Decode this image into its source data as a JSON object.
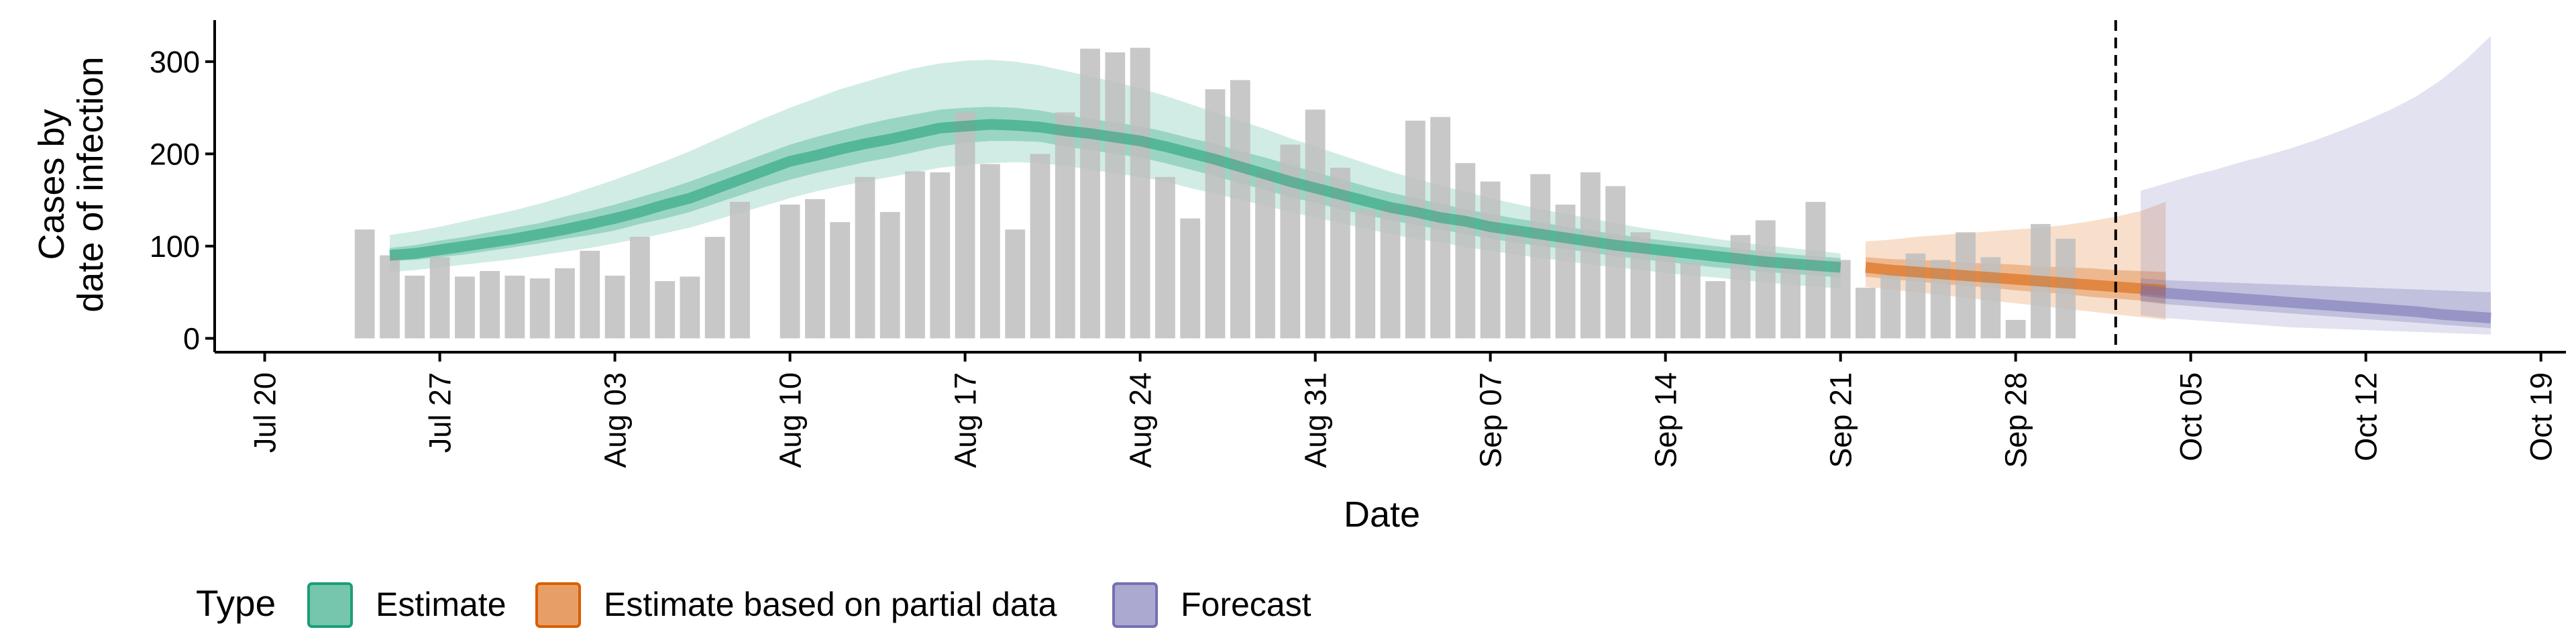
{
  "chart_data": {
    "type": "bar",
    "title": "",
    "xlabel": "Date",
    "ylabel_lines": [
      "Cases by",
      "date of infection"
    ],
    "xlim": [
      "2020-07-18",
      "2020-10-20"
    ],
    "ylim": [
      -15,
      345
    ],
    "y_ticks": [
      0,
      100,
      200,
      300
    ],
    "x_ticks": [
      {
        "date": "2020-07-20",
        "label": "Jul 20"
      },
      {
        "date": "2020-07-27",
        "label": "Jul 27"
      },
      {
        "date": "2020-08-03",
        "label": "Aug 03"
      },
      {
        "date": "2020-08-10",
        "label": "Aug 10"
      },
      {
        "date": "2020-08-17",
        "label": "Aug 17"
      },
      {
        "date": "2020-08-24",
        "label": "Aug 24"
      },
      {
        "date": "2020-08-31",
        "label": "Aug 31"
      },
      {
        "date": "2020-09-07",
        "label": "Sep 07"
      },
      {
        "date": "2020-09-14",
        "label": "Sep 14"
      },
      {
        "date": "2020-09-21",
        "label": "Sep 21"
      },
      {
        "date": "2020-09-28",
        "label": "Sep 28"
      },
      {
        "date": "2020-10-05",
        "label": "Oct 05"
      },
      {
        "date": "2020-10-12",
        "label": "Oct 12"
      },
      {
        "date": "2020-10-19",
        "label": "Oct 19"
      }
    ],
    "bars": {
      "start_date": "2020-07-24",
      "color": "#bebebe",
      "values": [
        118,
        90,
        68,
        88,
        67,
        73,
        68,
        65,
        76,
        95,
        68,
        110,
        62,
        67,
        110,
        148,
        null,
        145,
        151,
        126,
        175,
        137,
        181,
        180,
        245,
        189,
        118,
        200,
        245,
        314,
        310,
        315,
        175,
        130,
        270,
        280,
        182,
        210,
        248,
        185,
        140,
        145,
        236,
        240,
        190,
        170,
        120,
        178,
        145,
        180,
        165,
        115,
        90,
        82,
        62,
        112,
        128,
        85,
        148,
        85,
        55,
        70,
        92,
        85,
        115,
        88,
        20,
        124,
        108
      ]
    },
    "vline_date": "2020-10-02",
    "legend": {
      "title": "Type",
      "position": "bottom",
      "items": [
        {
          "label": "Estimate",
          "fill": "#1b9e77",
          "stroke": "#1b9e77"
        },
        {
          "label": "Estimate based on partial data",
          "fill": "#d95f02",
          "stroke": "#d95f02"
        },
        {
          "label": "Forecast",
          "fill": "#7570b3",
          "stroke": "#7570b3"
        }
      ]
    },
    "series": [
      {
        "name": "Estimate",
        "color": "#1b9e77",
        "start_date": "2020-07-25",
        "median": [
          90,
          92,
          96,
          100,
          104,
          108,
          113,
          118,
          124,
          130,
          137,
          145,
          152,
          162,
          172,
          182,
          192,
          198,
          205,
          211,
          216,
          222,
          228,
          230,
          232,
          231,
          229,
          225,
          222,
          218,
          214,
          208,
          201,
          194,
          186,
          178,
          170,
          163,
          156,
          149,
          142,
          137,
          131,
          127,
          121,
          117,
          113,
          109,
          105,
          101,
          98,
          95,
          92,
          89,
          86,
          83,
          81,
          79,
          77
        ],
        "inner_low": [
          84,
          85,
          88,
          91,
          95,
          99,
          103,
          108,
          112,
          117,
          124,
          130,
          137,
          146,
          155,
          164,
          172,
          179,
          185,
          191,
          196,
          202,
          208,
          212,
          214,
          214,
          213,
          208,
          204,
          200,
          196,
          190,
          183,
          176,
          168,
          161,
          153,
          147,
          140,
          134,
          128,
          123,
          118,
          113,
          108,
          104,
          100,
          97,
          93,
          89,
          86,
          83,
          80,
          77,
          75,
          72,
          70,
          68,
          66
        ],
        "inner_high": [
          98,
          101,
          106,
          110,
          115,
          120,
          125,
          132,
          138,
          145,
          153,
          161,
          170,
          180,
          190,
          200,
          210,
          218,
          225,
          232,
          238,
          243,
          248,
          250,
          251,
          250,
          247,
          242,
          238,
          234,
          230,
          224,
          217,
          211,
          203,
          196,
          188,
          180,
          173,
          165,
          158,
          152,
          146,
          140,
          135,
          130,
          126,
          121,
          117,
          113,
          109,
          106,
          103,
          100,
          97,
          94,
          91,
          89,
          87
        ],
        "outer_low": [
          72,
          74,
          77,
          80,
          83,
          86,
          90,
          94,
          98,
          103,
          108,
          114,
          120,
          128,
          136,
          144,
          152,
          159,
          165,
          170,
          175,
          180,
          185,
          188,
          190,
          191,
          190,
          187,
          183,
          179,
          175,
          170,
          163,
          157,
          150,
          144,
          137,
          131,
          125,
          119,
          113,
          108,
          104,
          99,
          95,
          91,
          87,
          84,
          80,
          77,
          74,
          71,
          68,
          66,
          63,
          61,
          58,
          56,
          54
        ],
        "outer_high": [
          112,
          116,
          121,
          127,
          133,
          139,
          146,
          154,
          163,
          172,
          182,
          192,
          203,
          215,
          227,
          239,
          250,
          260,
          270,
          278,
          286,
          293,
          298,
          301,
          302,
          300,
          296,
          290,
          284,
          278,
          271,
          263,
          254,
          245,
          236,
          227,
          217,
          208,
          199,
          190,
          181,
          173,
          166,
          159,
          152,
          146,
          140,
          135,
          130,
          125,
          120,
          116,
          112,
          108,
          104,
          101,
          98,
          95,
          92
        ]
      },
      {
        "name": "Estimate based on partial data",
        "color": "#d95f02",
        "start_date": "2020-09-22",
        "median": [
          77,
          74,
          72,
          70,
          68,
          66,
          64,
          62,
          60,
          58,
          56,
          54,
          52
        ],
        "inner_low": [
          67,
          64,
          62,
          59,
          57,
          55,
          52,
          50,
          48,
          45,
          43,
          41,
          38
        ],
        "inner_high": [
          88,
          86,
          85,
          84,
          82,
          81,
          80,
          78,
          77,
          76,
          74,
          73,
          72
        ],
        "outer_low": [
          56,
          53,
          50,
          47,
          44,
          41,
          38,
          35,
          32,
          29,
          26,
          23,
          20
        ],
        "outer_high": [
          105,
          107,
          110,
          112,
          114,
          116,
          118,
          120,
          123,
          127,
          132,
          138,
          148
        ]
      },
      {
        "name": "Forecast",
        "color": "#7570b3",
        "start_date": "2020-10-03",
        "median": [
          52,
          49,
          47,
          45,
          43,
          41,
          39,
          37,
          35,
          33,
          31,
          29,
          26,
          24,
          22
        ],
        "inner_low": [
          40,
          37,
          35,
          33,
          31,
          29,
          27,
          25,
          23,
          21,
          19,
          17,
          15,
          13,
          11
        ],
        "inner_high": [
          65,
          63,
          62,
          61,
          60,
          59,
          58,
          57,
          56,
          55,
          54,
          53,
          52,
          51,
          50
        ],
        "outer_low": [
          25,
          22,
          20,
          18,
          16,
          14,
          12,
          11,
          10,
          9,
          8,
          7,
          6,
          5,
          4
        ],
        "outer_high": [
          160,
          168,
          176,
          183,
          191,
          198,
          206,
          215,
          225,
          236,
          248,
          262,
          280,
          302,
          328
        ]
      }
    ]
  }
}
